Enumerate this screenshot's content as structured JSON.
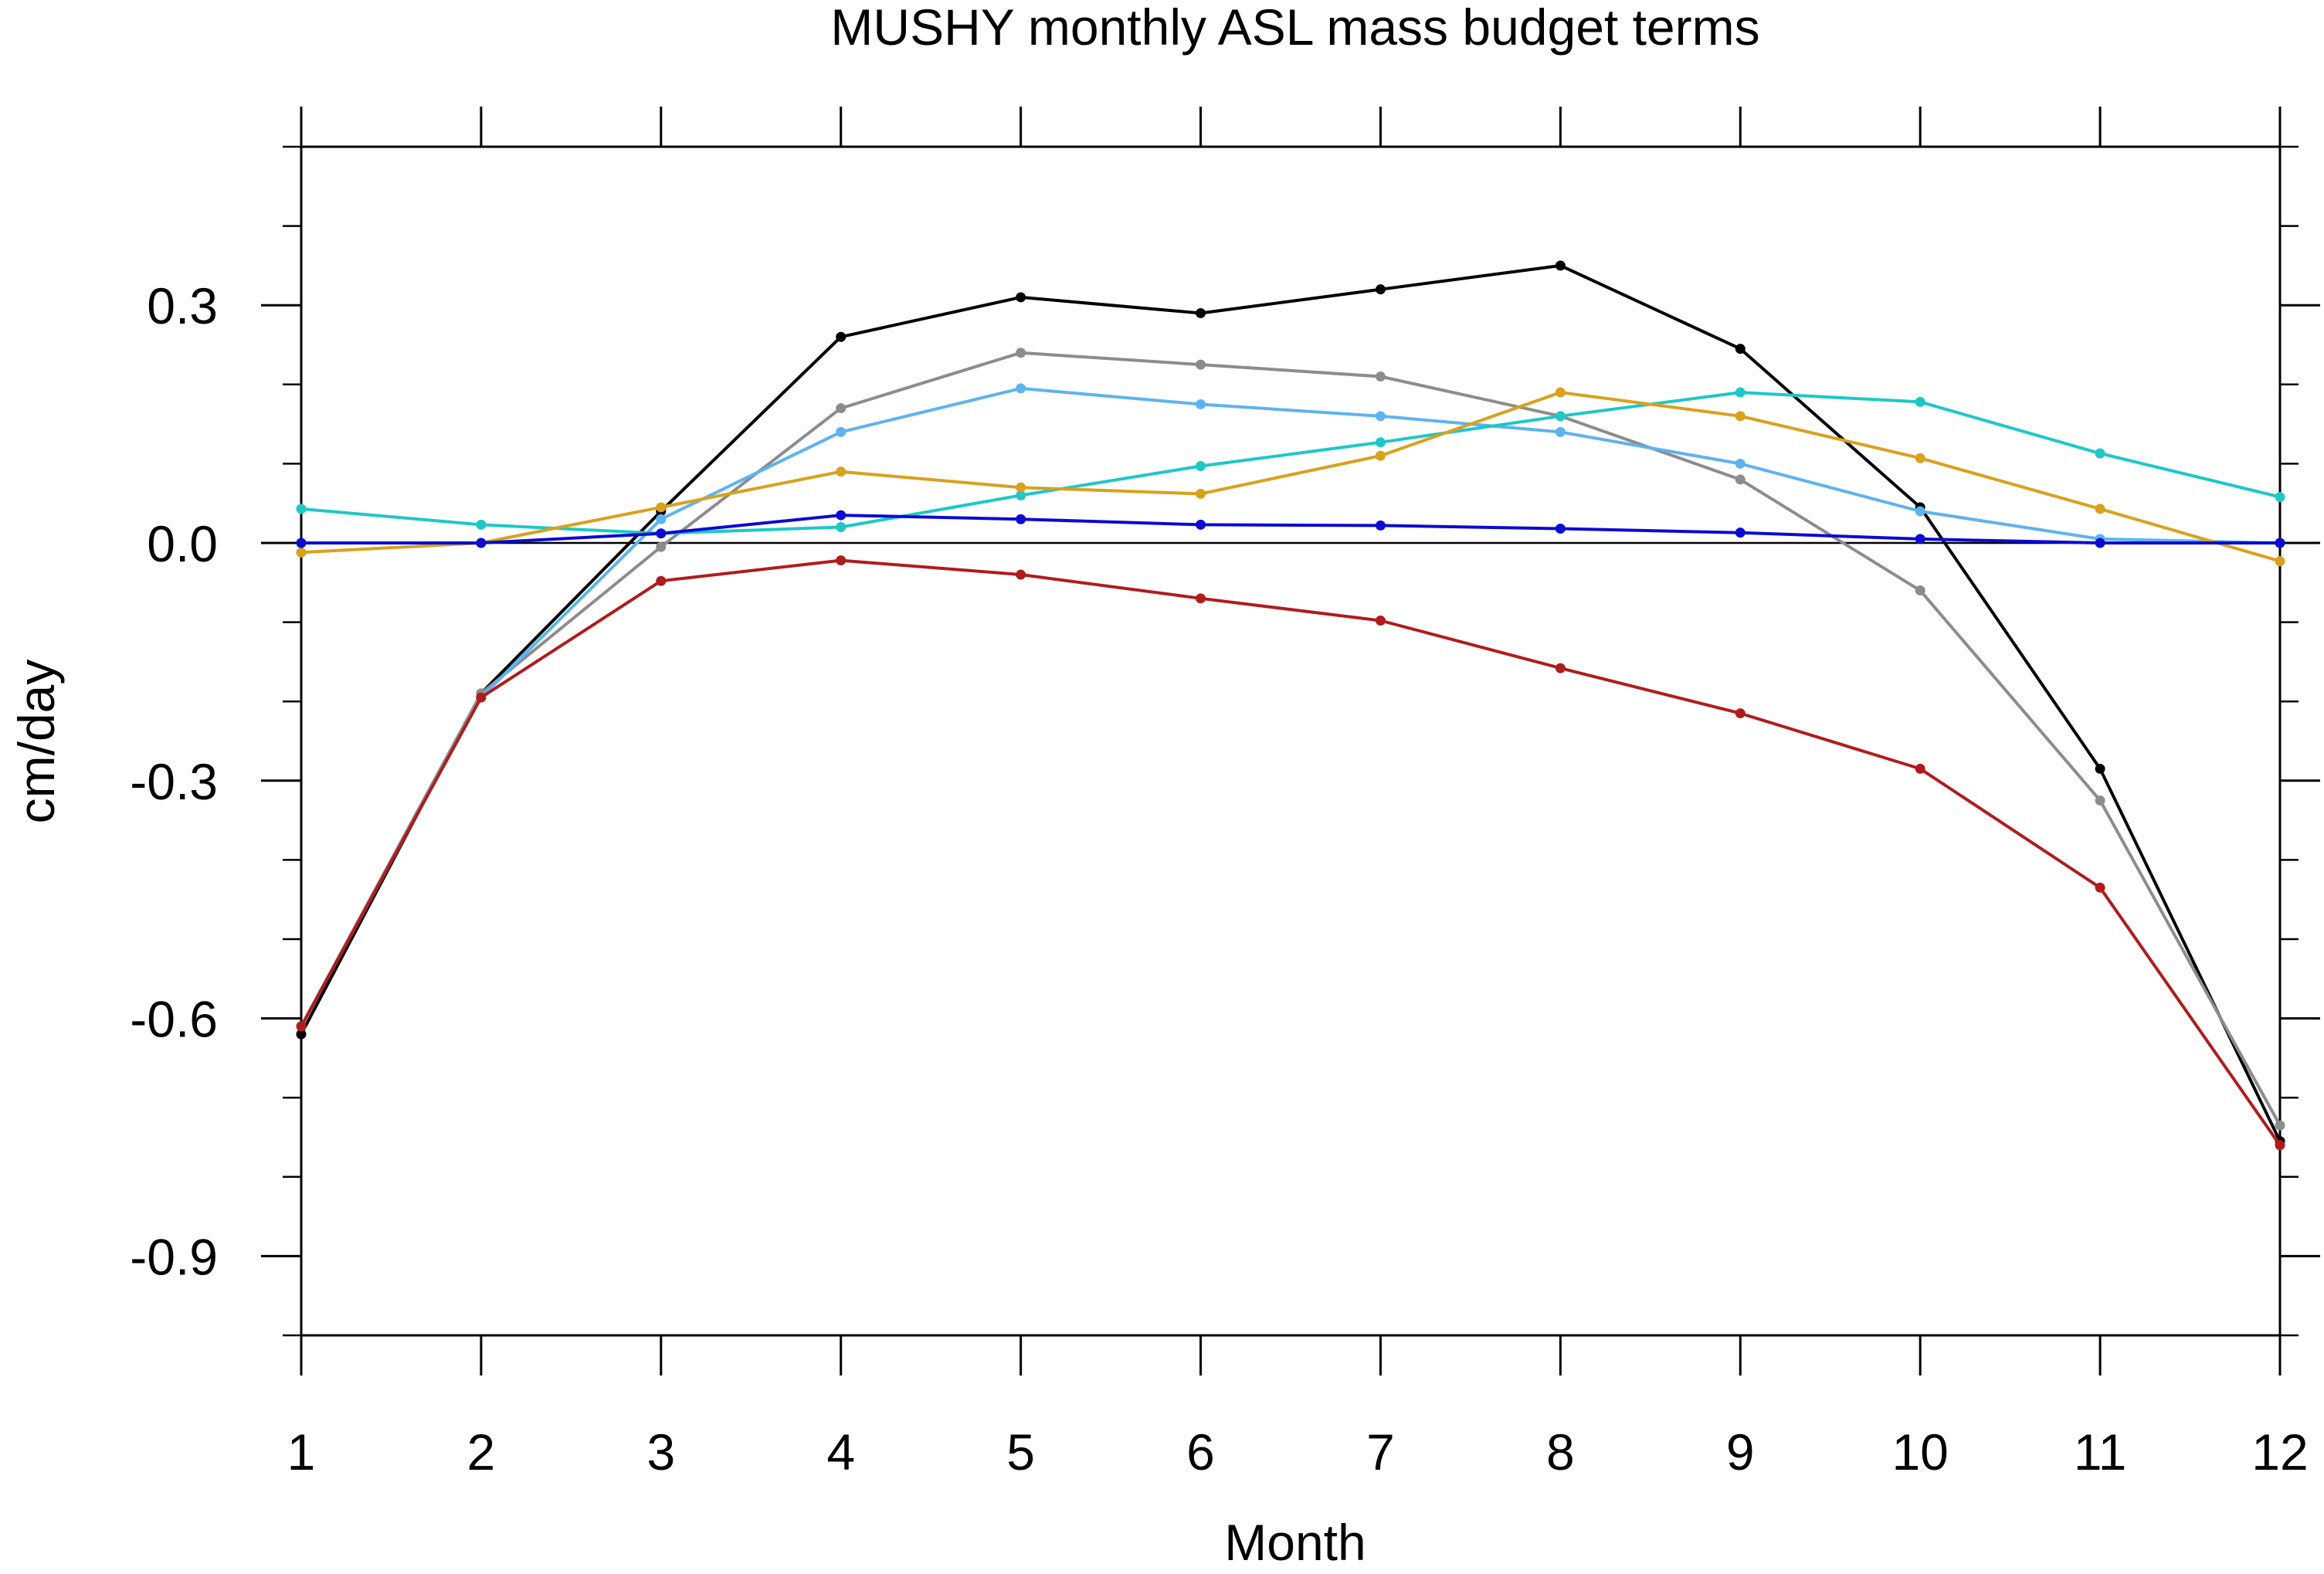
{
  "chart_data": {
    "type": "line",
    "title": "MUSHY monthly ASL mass budget terms",
    "xlabel": "Month",
    "ylabel": "cm/day",
    "x": [
      1,
      2,
      3,
      4,
      5,
      6,
      7,
      8,
      9,
      10,
      11,
      12
    ],
    "xlim": [
      1,
      12
    ],
    "ylim": [
      -1.0,
      0.5
    ],
    "x_ticks": [
      "1",
      "2",
      "3",
      "4",
      "5",
      "6",
      "7",
      "8",
      "9",
      "10",
      "11",
      "12"
    ],
    "y_ticks": [
      0.3,
      0.0,
      -0.3,
      -0.6,
      -0.9
    ],
    "y_tick_labels": [
      "0.3",
      "0.0",
      "-0.3",
      "-0.6",
      "-0.9"
    ],
    "grid": false,
    "legend": "none",
    "zero_line": true,
    "series": [
      {
        "color": "#000000",
        "values": [
          -0.62,
          -0.19,
          0.04,
          0.26,
          0.31,
          0.29,
          0.32,
          0.35,
          0.245,
          0.045,
          -0.285,
          -0.755
        ]
      },
      {
        "color": "#8c8c8c",
        "values": [
          -0.61,
          -0.19,
          -0.005,
          0.17,
          0.24,
          0.225,
          0.21,
          0.16,
          0.08,
          -0.06,
          -0.325,
          -0.735
        ]
      },
      {
        "color": "#5db3f0",
        "values": [
          -0.61,
          -0.195,
          0.03,
          0.14,
          0.195,
          0.175,
          0.16,
          0.14,
          0.1,
          0.04,
          0.005,
          0.0
        ]
      },
      {
        "color": "#1fc7c7",
        "values": [
          0.043,
          0.023,
          0.012,
          0.02,
          0.06,
          0.097,
          0.127,
          0.16,
          0.19,
          0.178,
          0.113,
          0.058
        ]
      },
      {
        "color": "#d9a11c",
        "values": [
          -0.012,
          0.0,
          0.045,
          0.09,
          0.07,
          0.062,
          0.11,
          0.19,
          0.16,
          0.107,
          0.043,
          -0.023
        ]
      },
      {
        "color": "#0b0bd1",
        "values": [
          0.0,
          0.0,
          0.012,
          0.035,
          0.03,
          0.023,
          0.022,
          0.018,
          0.013,
          0.005,
          0.0,
          0.0
        ]
      },
      {
        "color": "#b01c1c",
        "values": [
          -0.61,
          -0.195,
          -0.048,
          -0.022,
          -0.04,
          -0.07,
          -0.098,
          -0.158,
          -0.215,
          -0.285,
          -0.435,
          -0.76
        ]
      }
    ]
  }
}
